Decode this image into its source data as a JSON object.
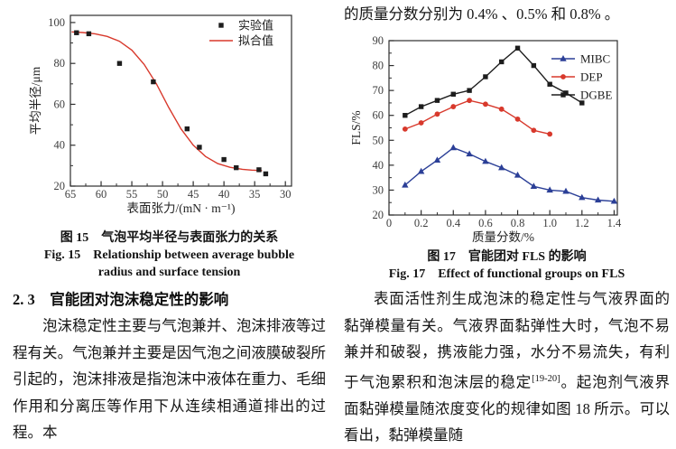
{
  "page": {
    "background": "#ffffff"
  },
  "right_column": {
    "intro_line": "的质量分数分别为 0.4% 、0.5% 和 0.8% 。",
    "figure17": {
      "caption_zh": "图 17　官能团对 FLS 的影响",
      "caption_en": "Fig. 17　Effect of functional groups on FLS"
    },
    "paragraph": {
      "before_sup": "表面活性剂生成泡沫的稳定性与气液界面的黏弹模量有关。气液界面黏弹性大时，气泡不易兼并和破裂，携液能力强，水分不易流失，有利于气泡累积和泡沫层的稳定",
      "sup": "[19-20]",
      "after_sup": "。起泡剂气液界面黏弹模量随浓度变化的规律如图 18 所示。可以看出，黏弹模量随"
    }
  },
  "left_column": {
    "figure15": {
      "caption_zh": "图 15　气泡平均半径与表面张力的关系",
      "caption_en_line1": "Fig. 15　Relationship between average bubble",
      "caption_en_line2": "radius and surface tension"
    },
    "section_heading": "2. 3　官能团对泡沫稳定性的影响",
    "paragraph": "泡沫稳定性主要与气泡兼并、泡沫排液等过程有关。气泡兼并主要是因气泡之间液膜破裂所引起的，泡沫排液是指泡沫中液体在重力、毛细作用和分离压等作用下从连续相通道排出的过程。本"
  },
  "chart_data": [
    {
      "type": "scatter",
      "title": "",
      "xlabel": "表面张力/(mN · m⁻¹)",
      "ylabel": "平均半径/μm",
      "xlim": [
        65,
        29
      ],
      "ylim": [
        20,
        103.5
      ],
      "x_ticks": [
        65,
        60,
        55,
        50,
        45,
        40,
        35,
        30
      ],
      "x_tick_labels": [
        "65",
        "60",
        "55",
        "50",
        "45",
        "40",
        "35",
        "30"
      ],
      "y_ticks": [
        20,
        40,
        60,
        80,
        100
      ],
      "y_tick_labels": [
        "20",
        "40",
        "60",
        "80",
        "100"
      ],
      "x_minor_step": 2.5,
      "y_minor_step": 10,
      "grid": false,
      "legend_position": "top-right",
      "legend": [
        {
          "label": "实验值",
          "color": "#1d1d1d",
          "marker": "square",
          "line": false
        },
        {
          "label": "拟合值",
          "color": "#d8392c",
          "marker": "none",
          "line": true
        }
      ],
      "series": [
        {
          "name": "拟合值",
          "type": "line",
          "marker": "none",
          "color": "#d8392c",
          "points": [
            [
              64.8,
              95.4
            ],
            [
              63,
              95.1
            ],
            [
              61,
              94.5
            ],
            [
              59,
              93.2
            ],
            [
              57,
              90.8
            ],
            [
              55,
              86.5
            ],
            [
              53,
              79.5
            ],
            [
              51,
              70
            ],
            [
              49,
              58.5
            ],
            [
              47,
              48
            ],
            [
              45,
              40
            ],
            [
              43,
              34.5
            ],
            [
              41,
              31
            ],
            [
              39,
              29.2
            ],
            [
              37,
              28.2
            ],
            [
              35.5,
              27.8
            ],
            [
              33.8,
              27.6
            ]
          ]
        },
        {
          "name": "实验值",
          "type": "scatter",
          "marker": "square",
          "color": "#1d1d1d",
          "points": [
            [
              64,
              95
            ],
            [
              62,
              94.5
            ],
            [
              57,
              80
            ],
            [
              51.5,
              71
            ],
            [
              46,
              48
            ],
            [
              44,
              39
            ],
            [
              40,
              33
            ],
            [
              38,
              29
            ],
            [
              34.3,
              28
            ],
            [
              33.2,
              26
            ]
          ]
        }
      ]
    },
    {
      "type": "line",
      "title": "",
      "xlabel": "质量分数/%",
      "ylabel": "FLS/%",
      "xlim": [
        0,
        1.42
      ],
      "ylim": [
        20,
        90
      ],
      "x_ticks": [
        0,
        0.2,
        0.4,
        0.6,
        0.8,
        1.0,
        1.2,
        1.4
      ],
      "x_tick_labels": [
        "0",
        "0.2",
        "0.4",
        "0.6",
        "0.8",
        "1.0",
        "1.2",
        "1.4"
      ],
      "y_ticks": [
        20,
        30,
        40,
        50,
        60,
        70,
        80,
        90
      ],
      "y_tick_labels": [
        "20",
        "30",
        "40",
        "50",
        "60",
        "70",
        "80",
        "90"
      ],
      "x_minor_step": 0.1,
      "y_minor_step": 5,
      "grid": false,
      "legend_position": "top-right",
      "legend": [
        {
          "label": "MIBC",
          "color": "#2b3f97",
          "marker": "triangle",
          "line": true
        },
        {
          "label": "DEP",
          "color": "#d8392c",
          "marker": "circle",
          "line": true
        },
        {
          "label": "DGBE",
          "color": "#1d1d1d",
          "marker": "square",
          "line": true
        }
      ],
      "series": [
        {
          "name": "MIBC",
          "type": "both",
          "marker": "triangle",
          "color": "#2b3f97",
          "points": [
            [
              0.1,
              32
            ],
            [
              0.2,
              37.5
            ],
            [
              0.3,
              42
            ],
            [
              0.4,
              47
            ],
            [
              0.5,
              44.5
            ],
            [
              0.6,
              41.5
            ],
            [
              0.7,
              39
            ],
            [
              0.8,
              36
            ],
            [
              0.9,
              31.5
            ],
            [
              1.0,
              30
            ],
            [
              1.1,
              29.5
            ],
            [
              1.2,
              27
            ],
            [
              1.3,
              26
            ],
            [
              1.4,
              25.5
            ]
          ]
        },
        {
          "name": "DEP",
          "type": "both",
          "marker": "circle",
          "color": "#d8392c",
          "points": [
            [
              0.1,
              54.5
            ],
            [
              0.2,
              57
            ],
            [
              0.3,
              60.5
            ],
            [
              0.4,
              63.5
            ],
            [
              0.5,
              66
            ],
            [
              0.6,
              64.5
            ],
            [
              0.7,
              62.5
            ],
            [
              0.8,
              58.5
            ],
            [
              0.9,
              54
            ],
            [
              1.0,
              52.5
            ]
          ]
        },
        {
          "name": "DGBE",
          "type": "both",
          "marker": "square",
          "color": "#1d1d1d",
          "points": [
            [
              0.1,
              60
            ],
            [
              0.2,
              63.5
            ],
            [
              0.3,
              66
            ],
            [
              0.4,
              68.5
            ],
            [
              0.5,
              70
            ],
            [
              0.6,
              75.5
            ],
            [
              0.7,
              81.5
            ],
            [
              0.8,
              87
            ],
            [
              0.9,
              80
            ],
            [
              1.0,
              72.5
            ],
            [
              1.1,
              69
            ],
            [
              1.2,
              65
            ]
          ]
        }
      ]
    }
  ]
}
